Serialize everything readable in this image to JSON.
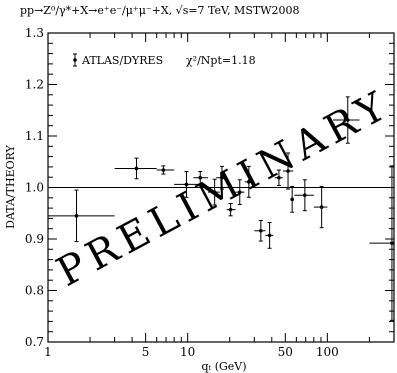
{
  "chart_data": {
    "type": "scatter",
    "title": "pp→Z⁰/γ*+X→e⁺e⁻/μ⁺μ⁻+X, √s=7 TeV, MSTW2008",
    "xlabel": "qₜ (GeV)",
    "ylabel": "DATA/THEORY",
    "xscale": "log",
    "xlim": [
      1,
      300
    ],
    "ylim": [
      0.7,
      1.3
    ],
    "reference_line": 1.0,
    "x_ticks": [
      1,
      5,
      10,
      50,
      100
    ],
    "x_tick_labels": [
      "1",
      "5",
      "10",
      "50",
      "100"
    ],
    "y_ticks": [
      0.7,
      0.8,
      0.9,
      1.0,
      1.1,
      1.2,
      1.3
    ],
    "y_tick_labels": [
      "0.7",
      "0.8",
      "0.9",
      "1.0",
      "1.1",
      "1.2",
      "1.3"
    ],
    "legend": {
      "label": "ATLAS/DYRES",
      "position": "top-left"
    },
    "annotation": "χ²/Npt=1.18",
    "watermark": "PRELIMINARY",
    "watermark_color": "#ffff00",
    "series": [
      {
        "name": "ATLAS/DYRES",
        "points": [
          {
            "x": 1.6,
            "x_lo": 1.0,
            "x_hi": 3.0,
            "y": 0.945,
            "y_err": 0.05
          },
          {
            "x": 4.3,
            "x_lo": 3.0,
            "x_hi": 6.0,
            "y": 1.037,
            "y_err": 0.02
          },
          {
            "x": 6.7,
            "x_lo": 6.0,
            "x_hi": 8.0,
            "y": 1.034,
            "y_err": 0.008
          },
          {
            "x": 9.8,
            "x_lo": 8.0,
            "x_hi": 12.0,
            "y": 1.006,
            "y_err": 0.025
          },
          {
            "x": 12.3,
            "x_lo": 11.0,
            "x_hi": 14.0,
            "y": 1.019,
            "y_err": 0.012
          },
          {
            "x": 15.6,
            "x_lo": 14.0,
            "x_hi": 17.0,
            "y": 0.991,
            "y_err": 0.025
          },
          {
            "x": 17.6,
            "x_lo": 16.0,
            "x_hi": 19.0,
            "y": 1.019,
            "y_err": 0.022
          },
          {
            "x": 20.3,
            "x_lo": 19.0,
            "x_hi": 22.0,
            "y": 0.957,
            "y_err": 0.012
          },
          {
            "x": 23.6,
            "x_lo": 22.0,
            "x_hi": 25.5,
            "y": 0.991,
            "y_err": 0.024
          },
          {
            "x": 27.4,
            "x_lo": 25.5,
            "x_hi": 29.0,
            "y": 1.011,
            "y_err": 0.03
          },
          {
            "x": 33.4,
            "x_lo": 30.0,
            "x_hi": 36.0,
            "y": 0.916,
            "y_err": 0.02
          },
          {
            "x": 38.6,
            "x_lo": 36.0,
            "x_hi": 41.0,
            "y": 0.907,
            "y_err": 0.025
          },
          {
            "x": 45.0,
            "x_lo": 42.0,
            "x_hi": 48.0,
            "y": 1.019,
            "y_err": 0.015
          },
          {
            "x": 52.3,
            "x_lo": 48.0,
            "x_hi": 57.0,
            "y": 1.032,
            "y_err": 0.035
          },
          {
            "x": 56.0,
            "x_lo": 55.0,
            "x_hi": 57.0,
            "y": 0.977,
            "y_err": 0.025
          },
          {
            "x": 69.0,
            "x_lo": 58.0,
            "x_hi": 80.0,
            "y": 0.985,
            "y_err": 0.03
          },
          {
            "x": 91.0,
            "x_lo": 80.0,
            "x_hi": 100.0,
            "y": 0.962,
            "y_err": 0.04
          },
          {
            "x": 140.0,
            "x_lo": 110.0,
            "x_hi": 170.0,
            "y": 1.131,
            "y_err": 0.045
          },
          {
            "x": 290.0,
            "x_lo": 200.0,
            "x_hi": 300.0,
            "y": 0.892,
            "y_err": 0.15
          }
        ]
      }
    ]
  }
}
